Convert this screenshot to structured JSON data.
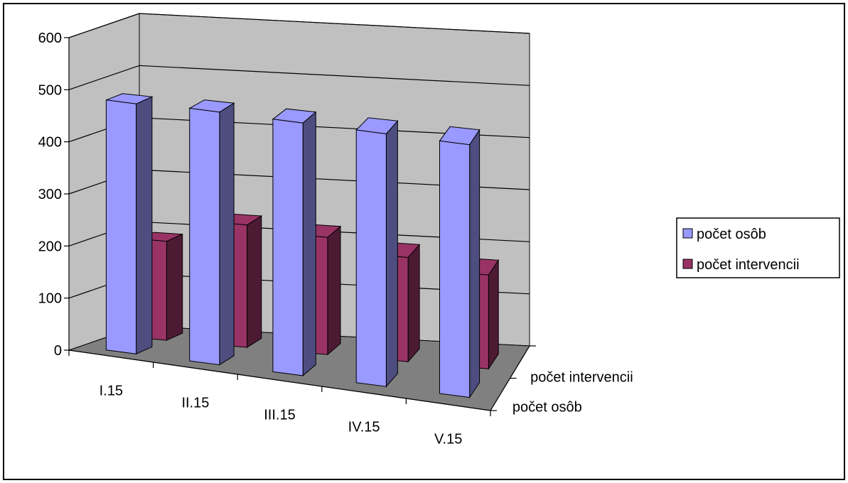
{
  "chart_data": {
    "type": "bar",
    "subtype": "3d-clustered-depth",
    "categories": [
      "I.15",
      "II.15",
      "III.15",
      "IV.15",
      "V.15"
    ],
    "series": [
      {
        "name": "počet osôb",
        "values": [
          480,
          485,
          485,
          485,
          485
        ],
        "color": "#9999FF"
      },
      {
        "name": "počet intervencii",
        "values": [
          190,
          235,
          225,
          200,
          180
        ],
        "color": "#993366"
      }
    ],
    "ylim": [
      0,
      600
    ],
    "yticks": [
      0,
      100,
      200,
      300,
      400,
      500,
      600
    ],
    "depth_axis_labels": [
      "počet osôb",
      "počet intervencii"
    ],
    "grid": true,
    "legend": "right",
    "wall_color": "#C0C0C0",
    "floor_color": "#808080"
  }
}
